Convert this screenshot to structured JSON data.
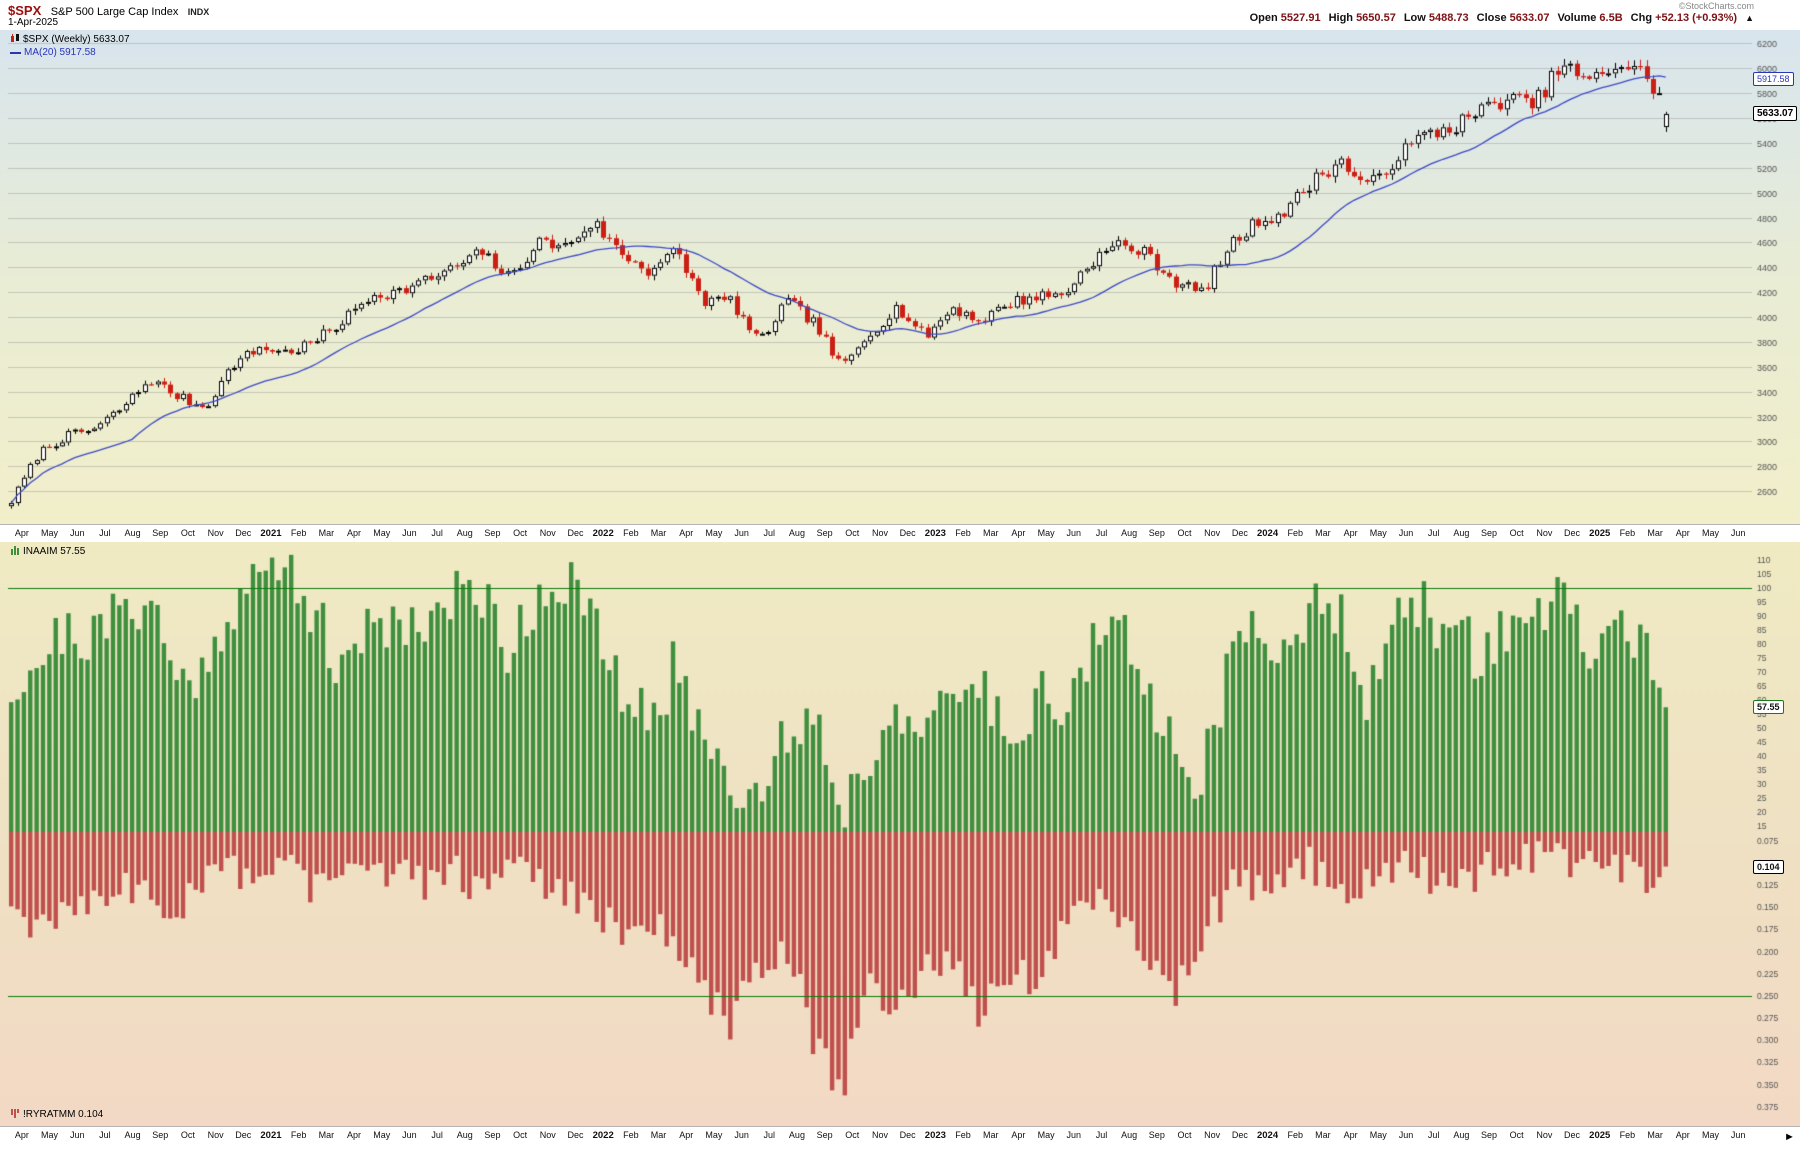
{
  "header": {
    "symbol": "$SPX",
    "name": "S&P 500 Large Cap Index",
    "exchange": "INDX",
    "date": "1-Apr-2025",
    "watermark": "©StockCharts.com",
    "stats": [
      {
        "label": "Open",
        "value": "5527.91"
      },
      {
        "label": "High",
        "value": "5650.57"
      },
      {
        "label": "Low",
        "value": "5488.73"
      },
      {
        "label": "Close",
        "value": "5633.07"
      },
      {
        "label": "Volume",
        "value": "6.5B"
      },
      {
        "label": "Chg",
        "value": "+52.13 (+0.93%)"
      }
    ],
    "direction_arrow": "▲"
  },
  "main_chart": {
    "legend_symbol": "$SPX (Weekly) 5633.07",
    "legend_ma": "MA(20) 5917.58",
    "ma_tag": "5917.58",
    "close_tag": "5633.07"
  },
  "indicator_panel": {
    "legend_top": "INAAIM 57.55",
    "legend_bottom": "!RYRATMM 0.104",
    "naaim_tag": "57.55",
    "rydex_tag": "0.104"
  },
  "x_axis": {
    "months": [
      "Apr",
      "May",
      "Jun",
      "Jul",
      "Aug",
      "Sep",
      "Oct",
      "Nov",
      "Dec",
      "2021",
      "Feb",
      "Mar",
      "Apr",
      "May",
      "Jun",
      "Jul",
      "Aug",
      "Sep",
      "Oct",
      "Nov",
      "Dec",
      "2022",
      "Feb",
      "Mar",
      "Apr",
      "May",
      "Jun",
      "Jul",
      "Aug",
      "Sep",
      "Oct",
      "Nov",
      "Dec",
      "2023",
      "Feb",
      "Mar",
      "Apr",
      "May",
      "Jun",
      "Jul",
      "Aug",
      "Sep",
      "Oct",
      "Nov",
      "Dec",
      "2024",
      "Feb",
      "Mar",
      "Apr",
      "May",
      "Jun",
      "Jul",
      "Aug",
      "Sep",
      "Oct",
      "Nov",
      "Dec",
      "2025",
      "Feb",
      "Mar",
      "Apr",
      "May",
      "Jun"
    ]
  },
  "colors": {
    "up_candle": "#000000",
    "down_candle": "#cc1f14",
    "ma_line": "#3c49c6",
    "green_bar": "#3f8f3f",
    "red_bar": "#c0504d",
    "threshold": "#0b7a0b",
    "bg_top": "#d8e5ee",
    "bg_mid": "#e9edd5",
    "bg_bottom": "#f2efca",
    "ind_bg_top": "#f0ebc3",
    "ind_bg_mid": "#efe2c3",
    "ind_bg_bottom": "#f3d9c5"
  },
  "chart_data": [
    {
      "type": "candlestick",
      "title": "$SPX (Weekly)",
      "x_start": "Apr 2020",
      "x_end": "Jun 2025",
      "grid": true,
      "y_range": [
        2400,
        6260
      ],
      "y_ticks": [
        6200,
        6000,
        5800,
        5600,
        5400,
        5200,
        5000,
        4800,
        4600,
        4400,
        4200,
        4000,
        3800,
        3600,
        3400,
        3200,
        3000,
        2800,
        2600
      ],
      "ma_period": 20,
      "monthly_close_anchors": [
        2520,
        2912,
        3044,
        3100,
        3271,
        3500,
        3363,
        3270,
        3621,
        3756,
        3714,
        3811,
        3972,
        4181,
        4204,
        4297,
        4395,
        4522,
        4307,
        4605,
        4567,
        4766,
        4516,
        4373,
        4530,
        4131,
        4132,
        3785,
        4130,
        3955,
        3586,
        3872,
        4080,
        3839,
        4077,
        3970,
        4109,
        4169,
        4180,
        4450,
        4589,
        4508,
        4288,
        4194,
        4568,
        4770,
        4846,
        5096,
        5254,
        5036,
        5278,
        5460,
        5522,
        5648,
        5762,
        5705,
        6032,
        5882,
        6041,
        5955,
        5612
      ],
      "last_week": {
        "open": 5527.91,
        "high": 5650.57,
        "low": 5488.73,
        "close": 5633.07,
        "ma20": 5917.58,
        "volume": "6.5B",
        "change": "+52.13",
        "change_pct": "+0.93%"
      }
    },
    {
      "type": "bar",
      "name": "INAAIM",
      "current": 57.55,
      "overbought_line": 100,
      "y_ticks": [
        110,
        105,
        100,
        95,
        90,
        85,
        80,
        75,
        70,
        65,
        60,
        55,
        50,
        45,
        40,
        35,
        30,
        25,
        20,
        15
      ],
      "monthly_anchors": [
        65,
        75,
        85,
        82,
        92,
        98,
        65,
        72,
        96,
        103,
        108,
        92,
        65,
        92,
        87,
        90,
        96,
        100,
        78,
        98,
        104,
        88,
        62,
        52,
        72,
        48,
        32,
        27,
        48,
        56,
        22,
        38,
        62,
        42,
        62,
        66,
        48,
        62,
        58,
        77,
        86,
        62,
        48,
        32,
        72,
        86,
        82,
        90,
        96,
        62,
        86,
        92,
        86,
        76,
        86,
        92,
        96,
        76,
        86,
        82,
        58
      ],
      "legend": "INAAIM 57.55"
    },
    {
      "type": "bar",
      "name": "!RYRATMM",
      "current": 0.104,
      "inverted_axis": true,
      "signal_line": 0.25,
      "y_ticks": [
        "0.075",
        "0.100",
        "0.125",
        "0.150",
        "0.175",
        "0.200",
        "0.225",
        "0.250",
        "0.275",
        "0.300",
        "0.325",
        "0.350",
        "0.375"
      ],
      "monthly_anchors": [
        0.16,
        0.17,
        0.15,
        0.14,
        0.12,
        0.14,
        0.15,
        0.12,
        0.11,
        0.12,
        0.11,
        0.13,
        0.11,
        0.12,
        0.11,
        0.12,
        0.11,
        0.13,
        0.11,
        0.12,
        0.13,
        0.15,
        0.18,
        0.16,
        0.19,
        0.25,
        0.28,
        0.22,
        0.19,
        0.3,
        0.36,
        0.24,
        0.26,
        0.22,
        0.2,
        0.28,
        0.22,
        0.24,
        0.18,
        0.14,
        0.16,
        0.2,
        0.26,
        0.18,
        0.13,
        0.12,
        0.11,
        0.1,
        0.14,
        0.12,
        0.1,
        0.11,
        0.13,
        0.11,
        0.1,
        0.09,
        0.1,
        0.1,
        0.1,
        0.13,
        0.104
      ],
      "legend": "!RYRATMM 0.104"
    }
  ]
}
